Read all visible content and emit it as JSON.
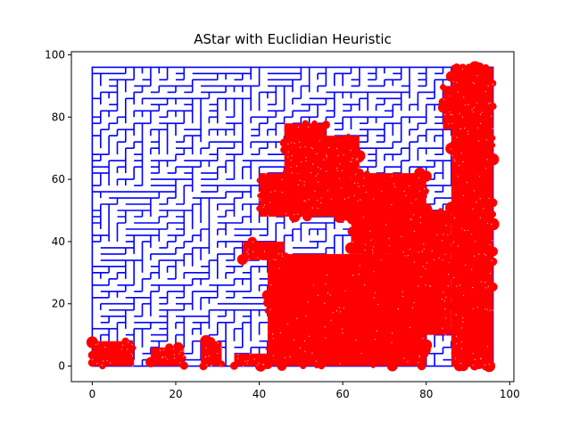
{
  "chart_data": {
    "type": "scatter",
    "title": "AStar with Euclidian Heuristic",
    "xlabel": "",
    "ylabel": "",
    "xlim": [
      -5,
      101
    ],
    "ylim": [
      -5,
      101
    ],
    "x_ticks": [
      0,
      20,
      40,
      60,
      80,
      100
    ],
    "y_ticks": [
      0,
      20,
      40,
      60,
      80,
      100
    ],
    "x_tick_labels": [
      "0",
      "20",
      "40",
      "60",
      "80",
      "100"
    ],
    "y_tick_labels": [
      "0",
      "20",
      "40",
      "60",
      "80",
      "100"
    ],
    "grid": false,
    "legend": "none",
    "series": [
      {
        "role": "maze-walls",
        "color": "#0000ff",
        "x_range": [
          0,
          96
        ],
        "y_range": [
          0,
          96
        ]
      },
      {
        "role": "explored-nodes",
        "color": "#ff0000",
        "regions": [
          {
            "x": [
              0,
              10
            ],
            "y": [
              0,
              8
            ]
          },
          {
            "x": [
              14,
              22
            ],
            "y": [
              0,
              6
            ]
          },
          {
            "x": [
              26,
              31
            ],
            "y": [
              0,
              8
            ]
          },
          {
            "x": [
              34,
              42
            ],
            "y": [
              0,
              4
            ]
          },
          {
            "x": [
              42,
              80
            ],
            "y": [
              0,
              36
            ]
          },
          {
            "x": [
              36,
              46
            ],
            "y": [
              34,
              40
            ]
          },
          {
            "x": [
              40,
              62
            ],
            "y": [
              48,
              62
            ]
          },
          {
            "x": [
              46,
              56
            ],
            "y": [
              62,
              78
            ]
          },
          {
            "x": [
              56,
              64
            ],
            "y": [
              60,
              74
            ]
          },
          {
            "x": [
              62,
              80
            ],
            "y": [
              36,
              62
            ]
          },
          {
            "x": [
              74,
              86
            ],
            "y": [
              10,
              50
            ]
          },
          {
            "x": [
              86,
              96
            ],
            "y": [
              0,
              96
            ]
          },
          {
            "x": [
              84,
              94
            ],
            "y": [
              76,
              90
            ]
          }
        ]
      }
    ]
  }
}
